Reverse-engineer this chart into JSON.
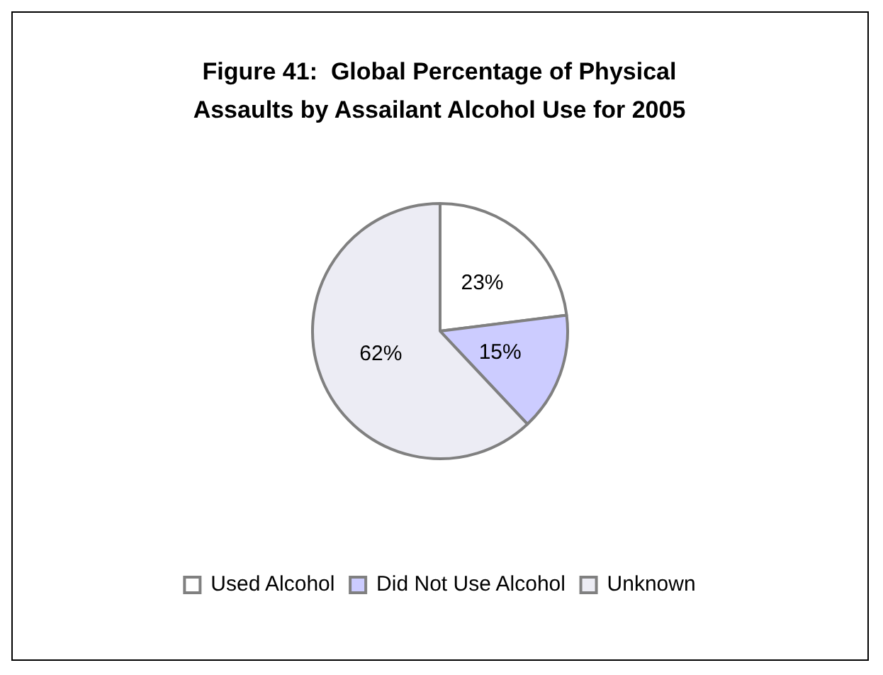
{
  "chart_data": {
    "type": "pie",
    "title": "Figure 41:  Global Percentage of Physical Assaults by Assailant Alcohol Use for 2005",
    "categories": [
      "Used Alcohol",
      "Did Not Use Alcohol",
      "Unknown"
    ],
    "values": [
      23,
      15,
      62
    ],
    "colors": [
      "#ffffff",
      "#ccccff",
      "#ececf4"
    ],
    "value_labels": [
      "23%",
      "15%",
      "62%"
    ],
    "legend": "bottom"
  }
}
